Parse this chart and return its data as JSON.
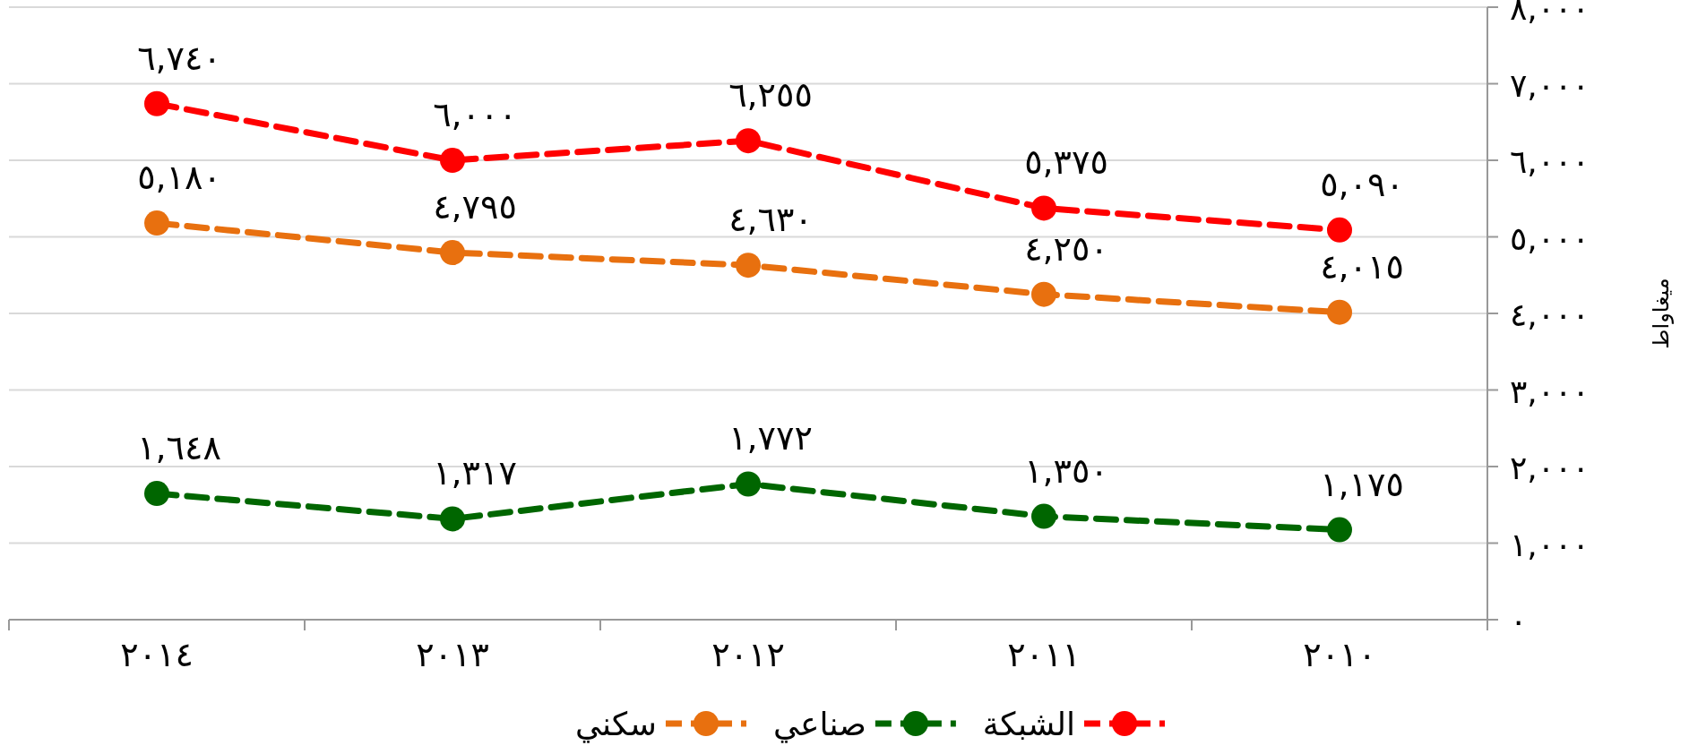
{
  "chart_data": {
    "type": "line",
    "categories": [
      "٢٠١٤",
      "٢٠١٣",
      "٢٠١٢",
      "٢٠١١",
      "٢٠١٠"
    ],
    "ylabel": "ميغاواط",
    "ylim": [
      0,
      8000
    ],
    "yticks": [
      {
        "value": 0,
        "label": "٠"
      },
      {
        "value": 1000,
        "label": "١,٠٠٠"
      },
      {
        "value": 2000,
        "label": "٢,٠٠٠"
      },
      {
        "value": 3000,
        "label": "٣,٠٠٠"
      },
      {
        "value": 4000,
        "label": "٤,٠٠٠"
      },
      {
        "value": 5000,
        "label": "٥,٠٠٠"
      },
      {
        "value": 6000,
        "label": "٦,٠٠٠"
      },
      {
        "value": 7000,
        "label": "٧,٠٠٠"
      },
      {
        "value": 8000,
        "label": "٨,٠٠٠"
      }
    ],
    "grid": "y",
    "legend": "bottom",
    "marker": "circle",
    "line_style": "dashed",
    "series": [
      {
        "name": "الشبكة",
        "color": "#ff0000",
        "values": [
          6740,
          6000,
          6255,
          5375,
          5090
        ],
        "value_labels": [
          "٦,٧٤٠",
          "٦,٠٠٠",
          "٦,٢٥٥",
          "٥,٣٧٥",
          "٥,٠٩٠"
        ]
      },
      {
        "name": "صناعي",
        "color": "#006600",
        "values": [
          1648,
          1317,
          1772,
          1350,
          1175
        ],
        "value_labels": [
          "١,٦٤٨",
          "١,٣١٧",
          "١,٧٧٢",
          "١,٣٥٠",
          "١,١٧٥"
        ]
      },
      {
        "name": "سكني",
        "color": "#e8700f",
        "values": [
          5180,
          4795,
          4630,
          4250,
          4015
        ],
        "value_labels": [
          "٥,١٨٠",
          "٤,٧٩٥",
          "٤,٦٣٠",
          "٤,٢٥٠",
          "٤,٠١٥"
        ]
      }
    ]
  }
}
